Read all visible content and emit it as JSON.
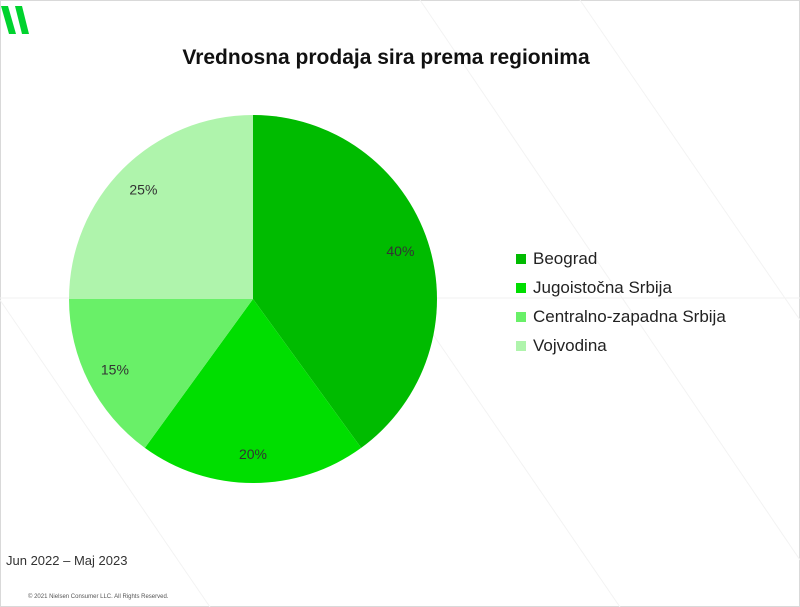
{
  "title": "Vrednosna prodaja sira prema regionima",
  "period": "Jun 2022 – Maj 2023",
  "copyright": "© 2021 Nielsen Consumer LLC. All Rights Reserved.",
  "colors": {
    "brand": "#00d32e",
    "slices": [
      "#00bb00",
      "#00de00",
      "#69f068",
      "#aff4ac"
    ]
  },
  "chart_data": {
    "type": "pie",
    "title": "Vrednosna prodaja sira prema regionima",
    "categories": [
      "Beograd",
      "Jugoistočna Srbija",
      "Centralno-zapadna Srbija",
      "Vojvodina"
    ],
    "values": [
      40,
      20,
      15,
      25
    ],
    "labels": [
      "40%",
      "20%",
      "15%",
      "25%"
    ],
    "legend_position": "right",
    "start": "top",
    "direction": "clockwise"
  }
}
